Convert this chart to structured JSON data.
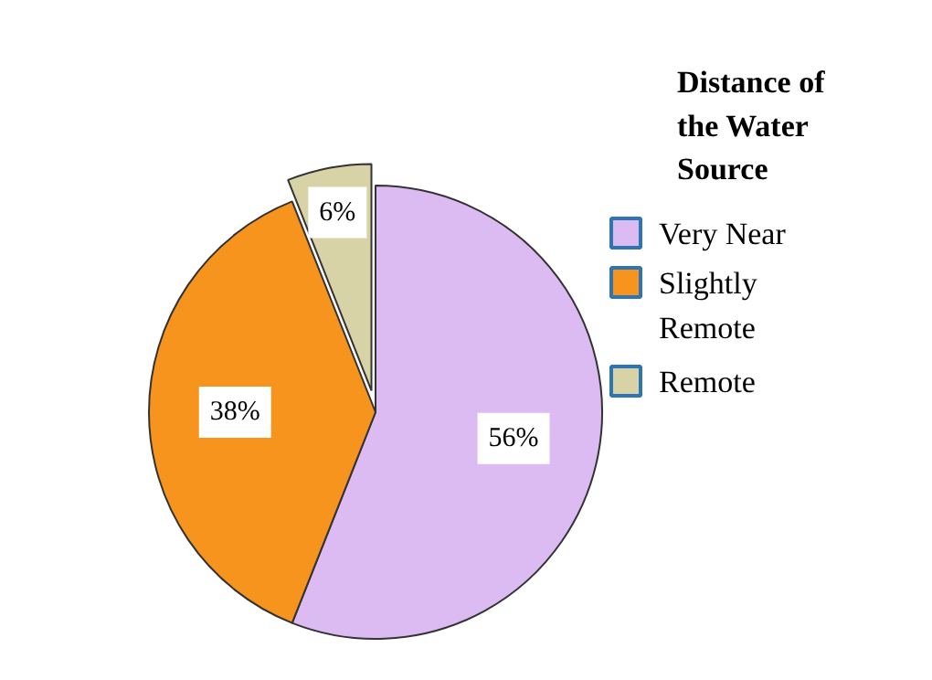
{
  "chart_data": {
    "type": "pie",
    "legend_title": "Distance of the Water Source",
    "categories": [
      "Very Near",
      "Slightly Remote",
      "Remote"
    ],
    "values": [
      56,
      38,
      6
    ],
    "colors": [
      "#dcbaf2",
      "#f7941d",
      "#d8d3a6"
    ],
    "value_labels": [
      "56%",
      "38%",
      "6%"
    ],
    "legend": "right"
  }
}
